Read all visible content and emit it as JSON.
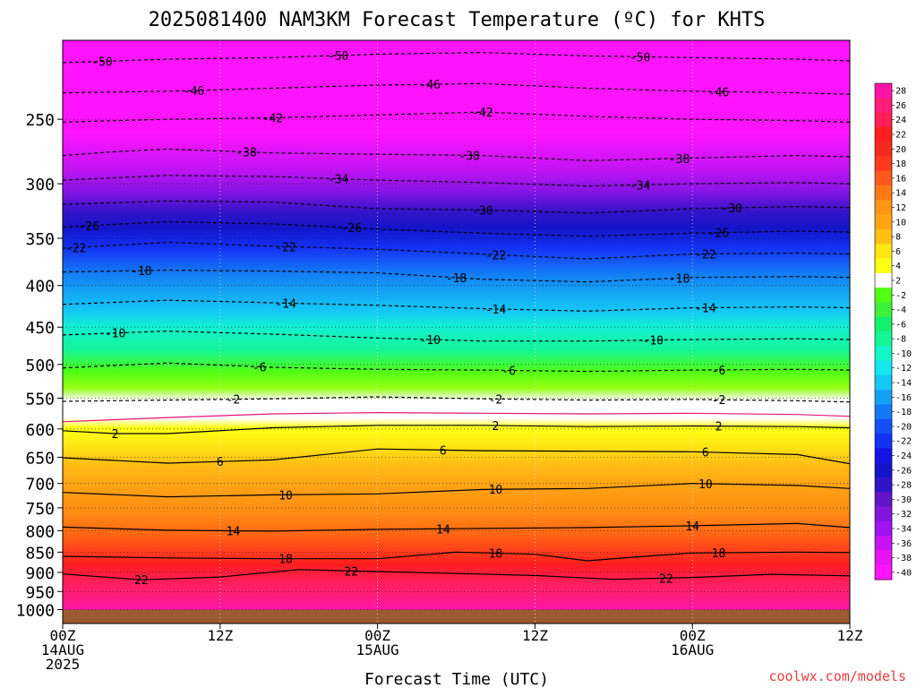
{
  "chart_data": {
    "type": "heatmap",
    "title": "2025081400 NAM3KM Forecast Temperature (ºC) for KHTS",
    "xlabel": "Forecast Time (UTC)",
    "ylabel": "",
    "credit": "coolwx.com/models",
    "x_ticks": [
      {
        "hour": 0,
        "line1": "00Z",
        "line2": "14AUG",
        "line3": "2025"
      },
      {
        "hour": 12,
        "line1": "12Z",
        "line2": "",
        "line3": ""
      },
      {
        "hour": 24,
        "line1": "00Z",
        "line2": "15AUG",
        "line3": ""
      },
      {
        "hour": 36,
        "line1": "12Z",
        "line2": "",
        "line3": ""
      },
      {
        "hour": 48,
        "line1": "00Z",
        "line2": "16AUG",
        "line3": ""
      },
      {
        "hour": 60,
        "line1": "12Z",
        "line2": "",
        "line3": ""
      }
    ],
    "xlim": [
      0,
      60
    ],
    "y_axis": {
      "scale": "log-pressure",
      "units": "hPa",
      "top": 200,
      "bottom": 1040,
      "ticks": [
        250,
        300,
        350,
        400,
        450,
        500,
        550,
        600,
        650,
        700,
        750,
        800,
        850,
        900,
        950,
        1000
      ]
    },
    "surface_pressure": 1000,
    "colorbar": {
      "labels": [
        28,
        26,
        24,
        22,
        20,
        18,
        16,
        14,
        12,
        10,
        8,
        6,
        4,
        2,
        -2,
        -4,
        -6,
        -8,
        -10,
        -12,
        -14,
        -16,
        -18,
        -20,
        -22,
        -24,
        -26,
        -28,
        -30,
        -32,
        -34,
        -36,
        -38,
        -40
      ],
      "colors": [
        "#ff14aa",
        "#ff1e7a",
        "#ff1e55",
        "#ff1e1e",
        "#f52a1e",
        "#ff3a1e",
        "#ff5a1e",
        "#ff7a14",
        "#ff9614",
        "#ffa514",
        "#ffc014",
        "#ffe614",
        "#ffff14",
        "#ffffff",
        "#50ff14",
        "#3cf03c",
        "#14f06e",
        "#14f596",
        "#14f5c8",
        "#14e6f0",
        "#14c8f5",
        "#14a0f5",
        "#1478f5",
        "#1450f5",
        "#1432f5",
        "#1414e6",
        "#1414c8",
        "#3214c8",
        "#6414c8",
        "#8214dc",
        "#a014f0",
        "#c814f5",
        "#e614f5",
        "#ff14ff"
      ]
    },
    "contours": [
      {
        "label": "-50",
        "style": "dashed",
        "p": [
          [
            0,
            213
          ],
          [
            8,
            211
          ],
          [
            16,
            210
          ],
          [
            24,
            208
          ],
          [
            32,
            207
          ],
          [
            40,
            209
          ],
          [
            48,
            210
          ],
          [
            56,
            211
          ],
          [
            60,
            212
          ]
        ],
        "labels_at": [
          3,
          21,
          44
        ]
      },
      {
        "label": "-46",
        "style": "dashed",
        "p": [
          [
            0,
            232
          ],
          [
            8,
            231
          ],
          [
            16,
            229
          ],
          [
            24,
            227
          ],
          [
            32,
            226
          ],
          [
            40,
            229
          ],
          [
            48,
            231
          ],
          [
            56,
            232
          ],
          [
            60,
            233
          ]
        ],
        "labels_at": [
          10,
          28,
          50
        ]
      },
      {
        "label": "-42",
        "style": "dashed",
        "p": [
          [
            0,
            252
          ],
          [
            8,
            250
          ],
          [
            16,
            249
          ],
          [
            24,
            247
          ],
          [
            32,
            245
          ],
          [
            40,
            248
          ],
          [
            48,
            250
          ],
          [
            56,
            251
          ],
          [
            60,
            252
          ]
        ],
        "labels_at": [
          16,
          32
        ]
      },
      {
        "label": "-38",
        "style": "dashed",
        "p": [
          [
            0,
            277
          ],
          [
            4,
            274
          ],
          [
            8,
            272
          ],
          [
            16,
            275
          ],
          [
            24,
            276
          ],
          [
            32,
            277
          ],
          [
            40,
            281
          ],
          [
            48,
            279
          ],
          [
            56,
            277
          ],
          [
            60,
            278
          ]
        ],
        "labels_at": [
          14,
          31,
          47
        ]
      },
      {
        "label": "-34",
        "style": "dashed",
        "p": [
          [
            0,
            297
          ],
          [
            8,
            293
          ],
          [
            16,
            294
          ],
          [
            24,
            297
          ],
          [
            32,
            299
          ],
          [
            40,
            302
          ],
          [
            48,
            300
          ],
          [
            56,
            299
          ],
          [
            60,
            300
          ]
        ],
        "labels_at": [
          21,
          44
        ]
      },
      {
        "label": "-30",
        "style": "dashed",
        "p": [
          [
            0,
            318
          ],
          [
            8,
            315
          ],
          [
            16,
            316
          ],
          [
            24,
            322
          ],
          [
            32,
            323
          ],
          [
            40,
            326
          ],
          [
            48,
            322
          ],
          [
            56,
            320
          ],
          [
            60,
            321
          ]
        ],
        "labels_at": [
          32,
          51
        ]
      },
      {
        "label": "-26",
        "style": "dashed",
        "p": [
          [
            0,
            339
          ],
          [
            8,
            334
          ],
          [
            16,
            336
          ],
          [
            24,
            341
          ],
          [
            32,
            345
          ],
          [
            40,
            348
          ],
          [
            48,
            345
          ],
          [
            56,
            343
          ],
          [
            60,
            344
          ]
        ],
        "labels_at": [
          2,
          22,
          50
        ]
      },
      {
        "label": "-22",
        "style": "dashed",
        "p": [
          [
            0,
            360
          ],
          [
            8,
            354
          ],
          [
            16,
            358
          ],
          [
            24,
            361
          ],
          [
            32,
            366
          ],
          [
            40,
            371
          ],
          [
            48,
            366
          ],
          [
            56,
            365
          ],
          [
            60,
            366
          ]
        ],
        "labels_at": [
          1,
          17,
          33,
          49
        ]
      },
      {
        "label": "-18",
        "style": "dashed",
        "p": [
          [
            0,
            385
          ],
          [
            8,
            383
          ],
          [
            16,
            384
          ],
          [
            24,
            386
          ],
          [
            32,
            393
          ],
          [
            40,
            396
          ],
          [
            48,
            391
          ],
          [
            56,
            390
          ],
          [
            60,
            391
          ]
        ],
        "labels_at": [
          6,
          30,
          47
        ]
      },
      {
        "label": "-14",
        "style": "dashed",
        "p": [
          [
            0,
            422
          ],
          [
            8,
            417
          ],
          [
            16,
            420
          ],
          [
            24,
            423
          ],
          [
            32,
            427
          ],
          [
            40,
            430
          ],
          [
            48,
            426
          ],
          [
            56,
            425
          ],
          [
            60,
            426
          ]
        ],
        "labels_at": [
          17,
          33,
          49
        ]
      },
      {
        "label": "-10",
        "style": "dashed",
        "p": [
          [
            0,
            460
          ],
          [
            8,
            455
          ],
          [
            16,
            459
          ],
          [
            24,
            464
          ],
          [
            32,
            468
          ],
          [
            40,
            468
          ],
          [
            48,
            466
          ],
          [
            56,
            465
          ],
          [
            60,
            466
          ]
        ],
        "labels_at": [
          4,
          28,
          45
        ]
      },
      {
        "label": "-6",
        "style": "dashed",
        "p": [
          [
            0,
            505
          ],
          [
            8,
            498
          ],
          [
            16,
            504
          ],
          [
            24,
            507
          ],
          [
            32,
            508
          ],
          [
            40,
            510
          ],
          [
            48,
            508
          ],
          [
            56,
            507
          ],
          [
            60,
            508
          ]
        ],
        "labels_at": [
          15,
          34,
          50
        ]
      },
      {
        "label": "-2",
        "style": "dashed",
        "p": [
          [
            0,
            555
          ],
          [
            8,
            553
          ],
          [
            16,
            551
          ],
          [
            24,
            548
          ],
          [
            32,
            551
          ],
          [
            40,
            553
          ],
          [
            48,
            552
          ],
          [
            56,
            554
          ],
          [
            60,
            556
          ]
        ],
        "labels_at": [
          13,
          33,
          50
        ]
      },
      {
        "label": "",
        "style": "magenta",
        "p": [
          [
            0,
            588
          ],
          [
            8,
            581
          ],
          [
            16,
            575
          ],
          [
            24,
            573
          ],
          [
            32,
            574
          ],
          [
            40,
            575
          ],
          [
            48,
            574
          ],
          [
            56,
            576
          ],
          [
            60,
            579
          ]
        ],
        "labels_at": []
      },
      {
        "label": "2",
        "style": "solid",
        "p": [
          [
            0,
            603
          ],
          [
            4,
            608
          ],
          [
            8,
            608
          ],
          [
            16,
            598
          ],
          [
            24,
            594
          ],
          [
            32,
            594
          ],
          [
            40,
            596
          ],
          [
            48,
            595
          ],
          [
            56,
            596
          ],
          [
            60,
            598
          ]
        ],
        "labels_at": [
          4,
          33,
          50
        ]
      },
      {
        "label": "6",
        "style": "solid",
        "p": [
          [
            0,
            651
          ],
          [
            8,
            661
          ],
          [
            16,
            655
          ],
          [
            24,
            635
          ],
          [
            32,
            638
          ],
          [
            40,
            639
          ],
          [
            48,
            640
          ],
          [
            56,
            645
          ],
          [
            60,
            662
          ]
        ],
        "labels_at": [
          12,
          29,
          49
        ]
      },
      {
        "label": "10",
        "style": "solid",
        "p": [
          [
            0,
            718
          ],
          [
            8,
            727
          ],
          [
            16,
            723
          ],
          [
            24,
            721
          ],
          [
            32,
            712
          ],
          [
            40,
            710
          ],
          [
            48,
            700
          ],
          [
            56,
            704
          ],
          [
            60,
            710
          ]
        ],
        "labels_at": [
          17,
          33,
          49
        ]
      },
      {
        "label": "14",
        "style": "solid",
        "p": [
          [
            0,
            792
          ],
          [
            8,
            799
          ],
          [
            16,
            801
          ],
          [
            24,
            797
          ],
          [
            32,
            795
          ],
          [
            40,
            793
          ],
          [
            48,
            789
          ],
          [
            56,
            784
          ],
          [
            60,
            793
          ]
        ],
        "labels_at": [
          13,
          29,
          48
        ]
      },
      {
        "label": "18",
        "style": "solid",
        "p": [
          [
            0,
            860
          ],
          [
            8,
            864
          ],
          [
            16,
            866
          ],
          [
            24,
            866
          ],
          [
            30,
            850
          ],
          [
            36,
            855
          ],
          [
            40,
            871
          ],
          [
            44,
            861
          ],
          [
            48,
            852
          ],
          [
            56,
            850
          ],
          [
            60,
            851
          ]
        ],
        "labels_at": [
          17,
          33,
          50
        ]
      },
      {
        "label": "22",
        "style": "solid",
        "p": [
          [
            0,
            904
          ],
          [
            6,
            919
          ],
          [
            12,
            912
          ],
          [
            18,
            893
          ],
          [
            24,
            898
          ],
          [
            30,
            903
          ],
          [
            36,
            908
          ],
          [
            42,
            918
          ],
          [
            48,
            913
          ],
          [
            54,
            905
          ],
          [
            60,
            909
          ]
        ],
        "labels_at": [
          6,
          22,
          46
        ]
      }
    ]
  }
}
